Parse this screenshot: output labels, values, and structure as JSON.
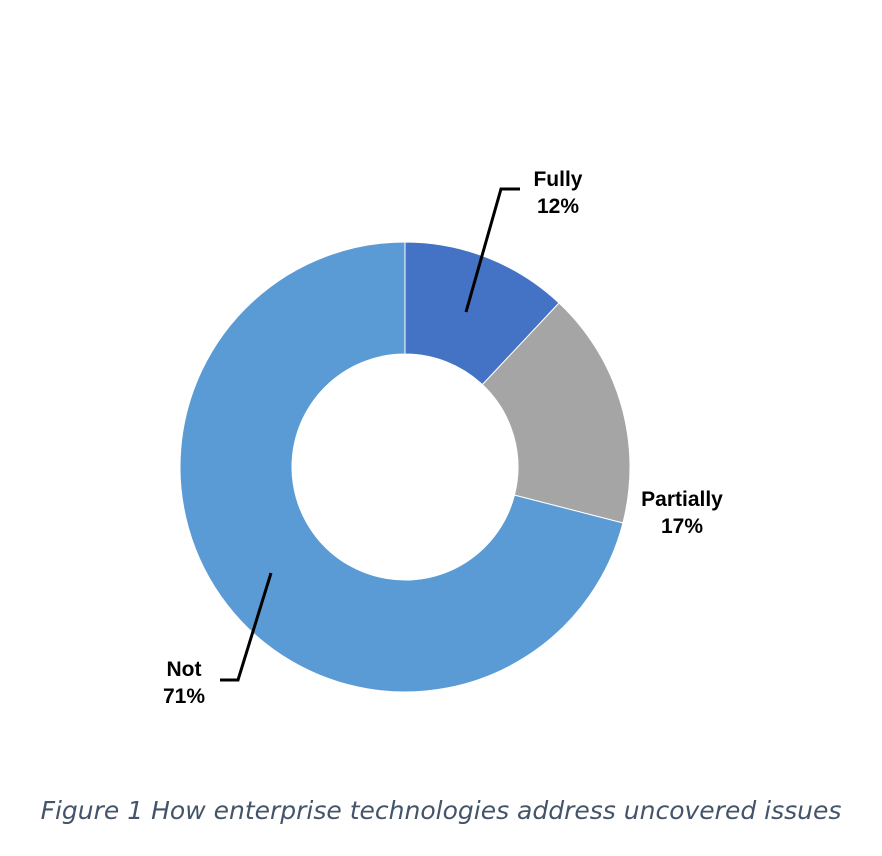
{
  "chart_data": {
    "type": "pie",
    "style": "donut",
    "categories": [
      "Fully",
      "Partially",
      "Not"
    ],
    "values": [
      12,
      17,
      71
    ],
    "value_labels": [
      "12%",
      "17%",
      "71%"
    ],
    "colors": [
      "#4472c4",
      "#a5a5a5",
      "#5b9bd5"
    ],
    "legend": "none"
  },
  "caption": "Figure 1 How enterprise technologies address uncovered issues"
}
